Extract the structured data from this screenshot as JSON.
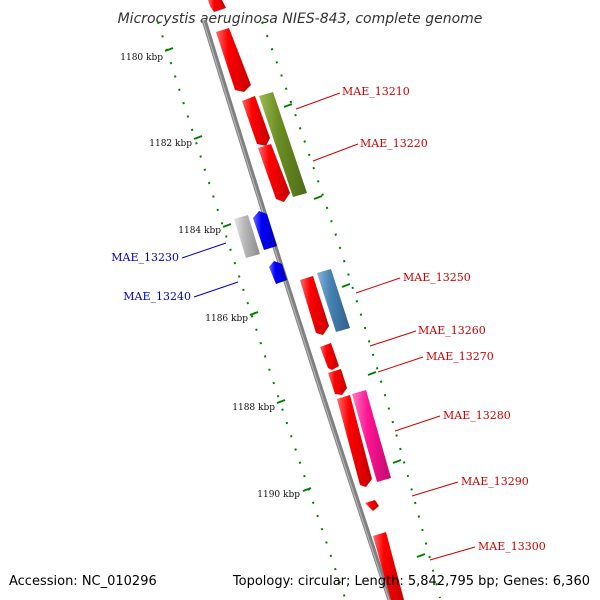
{
  "title": "Microcystis aeruginosa NIES-843, complete genome",
  "footer": {
    "accession": "Accession: NC_010296",
    "topology": "Topology: circular; Length: 5,842,795 bp; Genes: 6,360"
  },
  "colors": {
    "forward_gene": "#ff0000",
    "reverse_gene": "#0000ff",
    "tick": "#008000",
    "backbone": "#808080"
  },
  "ticks": [
    {
      "label": "1180 kbp"
    },
    {
      "label": "1182 kbp"
    },
    {
      "label": "1184 kbp"
    },
    {
      "label": "1186 kbp"
    },
    {
      "label": "1188 kbp"
    },
    {
      "label": "1190 kbp"
    }
  ],
  "gene_labels": [
    {
      "name": "MAE_13210",
      "color": "#cc0000"
    },
    {
      "name": "MAE_13220",
      "color": "#cc0000"
    },
    {
      "name": "MAE_13230",
      "color": "#0000cc"
    },
    {
      "name": "MAE_13240",
      "color": "#0000cc"
    },
    {
      "name": "MAE_13250",
      "color": "#cc0000"
    },
    {
      "name": "MAE_13260",
      "color": "#cc0000"
    },
    {
      "name": "MAE_13270",
      "color": "#cc0000"
    },
    {
      "name": "MAE_13280",
      "color": "#cc0000"
    },
    {
      "name": "MAE_13290",
      "color": "#cc0000"
    },
    {
      "name": "MAE_13300",
      "color": "#cc0000"
    }
  ],
  "feature_colors": [
    "#6b8e23",
    "#4682b4",
    "#ff1493",
    "#b0b0b0"
  ]
}
